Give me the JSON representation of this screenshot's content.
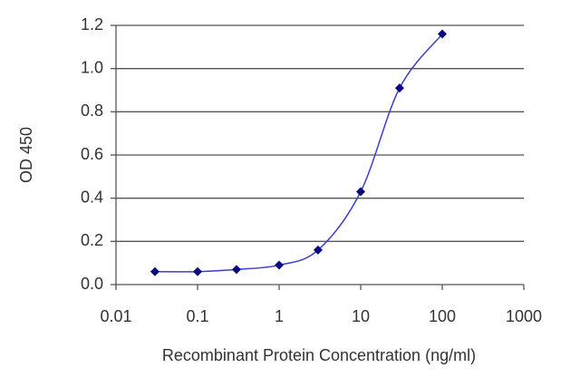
{
  "chart_data": {
    "type": "line",
    "x_label": "Recombinant Protein Concentration (ng/ml)",
    "y_label": "OD 450",
    "x": [
      0.03,
      0.1,
      0.3,
      1,
      3,
      10,
      30,
      100
    ],
    "series": [
      {
        "color": "#3a3ecf",
        "marker_color": "#0a0a80",
        "values": [
          0.06,
          0.06,
          0.07,
          0.09,
          0.16,
          0.43,
          0.91,
          1.16
        ]
      }
    ],
    "x_log": true,
    "xlim": [
      0.01,
      1000
    ],
    "xticks": [
      0.01,
      0.1,
      1,
      10,
      100,
      1000
    ],
    "ylim": [
      0,
      1.2
    ],
    "yticks": [
      {
        "value": 0,
        "label": "0.0"
      },
      0.2,
      0.4,
      0.6,
      0.8,
      {
        "value": 1,
        "label": "1.0"
      },
      1.2
    ],
    "grid": true
  }
}
